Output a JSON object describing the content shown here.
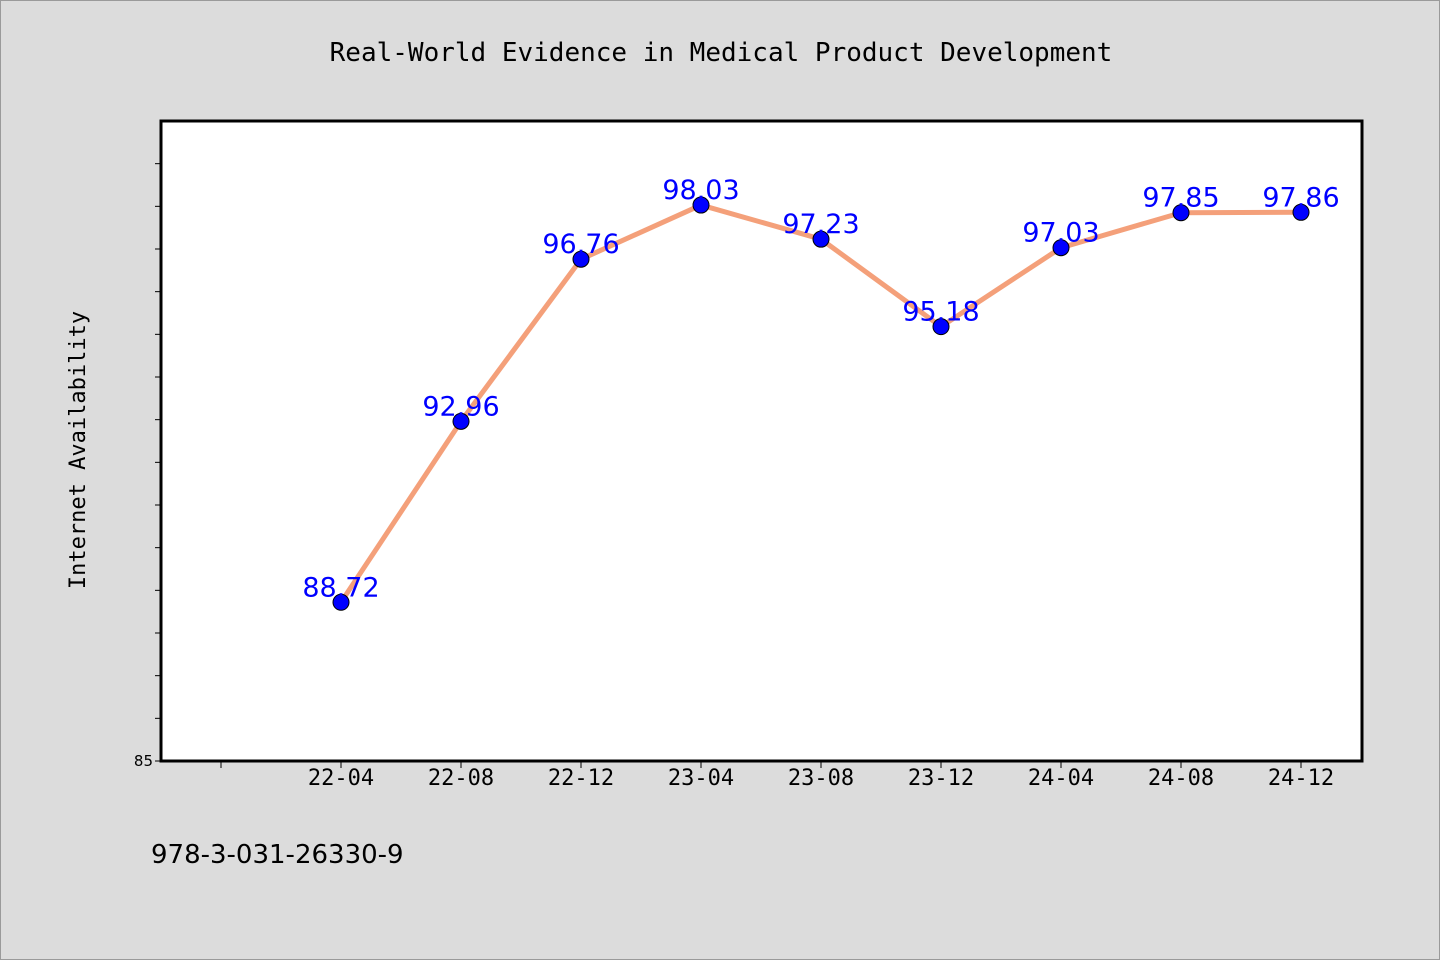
{
  "chart_data": {
    "type": "line",
    "title": "Real-World Evidence in Medical Product Development",
    "xlabel": "",
    "ylabel": "Internet Availability",
    "categories": [
      "22-04",
      "22-08",
      "22-12",
      "23-04",
      "23-08",
      "23-12",
      "24-04",
      "24-08",
      "24-12"
    ],
    "values": [
      88.72,
      92.96,
      96.76,
      98.03,
      97.23,
      95.18,
      97.03,
      97.85,
      97.86
    ],
    "data_labels": [
      "88.72",
      "92.96",
      "96.76",
      "98.03",
      "97.23",
      "95.18",
      "97.03",
      "97.85",
      "97.86"
    ],
    "ylim": [
      85,
      100
    ],
    "y_tick_labels": [
      {
        "value": 85,
        "label": "85"
      }
    ],
    "y_minor_step": 1,
    "x_offset_months": 2,
    "grid": false,
    "legend": "none",
    "line_color": "#f4a07a",
    "marker_color": "#0000ff",
    "label_color": "#0000ff"
  },
  "footer_text": "978-3-031-26330-9",
  "colors": {
    "background": "#dcdcdc",
    "plot_background": "#ffffff",
    "axis": "#000000"
  }
}
